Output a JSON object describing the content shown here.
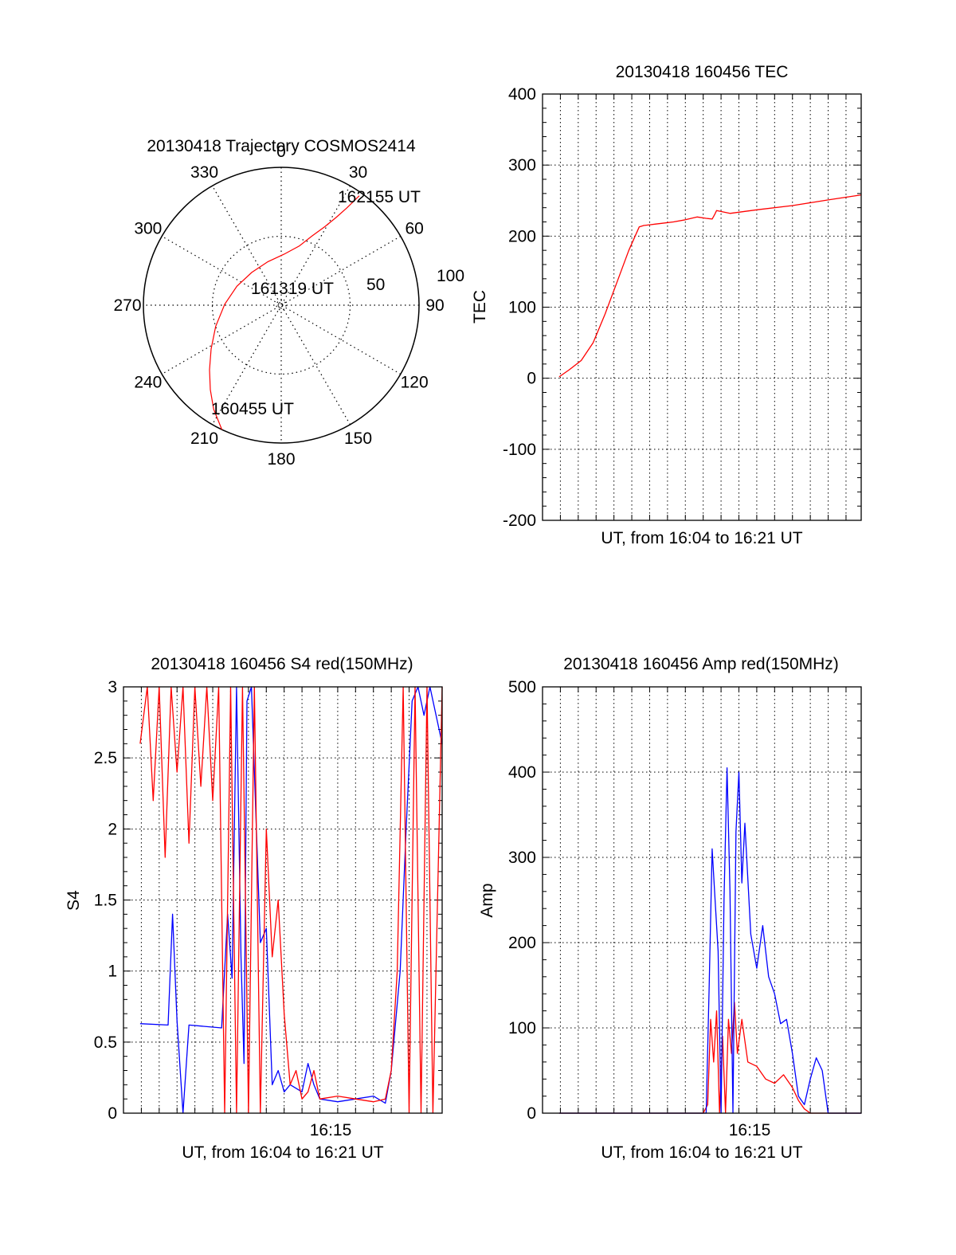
{
  "colors": {
    "red": "#ff0000",
    "blue": "#0000ff",
    "axis": "#000000",
    "grid": "#000000"
  },
  "chart_data": [
    {
      "id": "trajectory",
      "type": "polar",
      "title": "20130418 Trajectory COSMOS2414",
      "angle_labels": [
        "0",
        "30",
        "60",
        "90",
        "120",
        "150",
        "180",
        "210",
        "240",
        "270",
        "300",
        "330"
      ],
      "radial_labels": [
        "50",
        "100"
      ],
      "radius_max": 100,
      "grid": true,
      "series": [
        {
          "color": "red",
          "points": [
            [
              205.5,
              100
            ],
            [
              213,
              90
            ],
            [
              220,
              80
            ],
            [
              228,
              70
            ],
            [
              238,
              60
            ],
            [
              252,
              50
            ],
            [
              271,
              41
            ],
            [
              293,
              35
            ],
            [
              318,
              32
            ],
            [
              343,
              33
            ],
            [
              3,
              37
            ],
            [
              17,
              45
            ],
            [
              24,
              55
            ],
            [
              29,
              65
            ],
            [
              32,
              75
            ],
            [
              34,
              85
            ],
            [
              35.5,
              97.5
            ]
          ]
        }
      ],
      "annotations": [
        {
          "text": "162155 UT",
          "angle": 35.5,
          "r": 97.5
        },
        {
          "text": "161319 UT",
          "angle": 300,
          "r": 20
        },
        {
          "text": "160455 UT",
          "angle": 205.5,
          "r": 100
        }
      ]
    },
    {
      "id": "tec",
      "type": "line",
      "title": "20130418 160456 TEC",
      "xlabel": "UT, from 16:04 to 16:21 UT",
      "ylabel": "TEC",
      "xlim": [
        "16:04:00",
        "16:21:51"
      ],
      "ylim": [
        -200,
        400
      ],
      "yticks": [
        "-200",
        "-100",
        "0",
        "100",
        "200",
        "300",
        "400"
      ],
      "grid": true,
      "series": [
        {
          "color": "red",
          "x": [
            "16:04:56",
            "16:05:30",
            "16:06:10",
            "16:06:50",
            "16:07:30",
            "16:08:10",
            "16:08:50",
            "16:09:25",
            "16:09:40",
            "16:10:00",
            "16:10:20",
            "16:10:40",
            "16:11:20",
            "16:12:00",
            "16:12:40",
            "16:13:10",
            "16:13:30",
            "16:13:38",
            "16:13:45",
            "16:14:30",
            "16:16:00",
            "16:18:00",
            "16:20:00",
            "16:21:51"
          ],
          "y": [
            2,
            12,
            25,
            50,
            90,
            135,
            180,
            213,
            215,
            216,
            217,
            218,
            220,
            223,
            227,
            225,
            224,
            230,
            236,
            232,
            237,
            243,
            251,
            258
          ]
        }
      ]
    },
    {
      "id": "s4",
      "type": "line",
      "title": "20130418 160456 S4 red(150MHz)",
      "xlabel": "UT, from 16:04 to 16:21 UT",
      "ylabel": "S4",
      "xtick_label": "16:15",
      "xlim": [
        "16:04:00",
        "16:21:51"
      ],
      "ylim": [
        0,
        3
      ],
      "yticks": [
        "0",
        "0.5",
        "1",
        "1.5",
        "2",
        "2.5",
        "3"
      ],
      "grid": true,
      "series": [
        {
          "color": "blue",
          "note_source": "picture",
          "x": [
            "16:04:56",
            "16:06:30",
            "16:06:45",
            "16:07:00",
            "16:07:20",
            "16:07:40",
            "16:09:30",
            "16:09:50",
            "16:10:05",
            "16:10:20",
            "16:10:35",
            "16:10:45",
            "16:10:55",
            "16:11:10",
            "16:11:40",
            "16:12:00",
            "16:12:20",
            "16:12:40",
            "16:13:00",
            "16:13:20",
            "16:14:00",
            "16:14:20",
            "16:14:40",
            "16:15:00",
            "16:16:00",
            "16:17:00",
            "16:18:00",
            "16:18:40",
            "16:19:00",
            "16:19:30",
            "16:19:50",
            "16:20:10",
            "16:20:30",
            "16:20:50",
            "16:21:10",
            "16:21:51"
          ],
          "y": [
            0.63,
            0.62,
            1.4,
            0.65,
            0,
            0.62,
            0.6,
            1.4,
            0.95,
            3.0,
            1.1,
            0.35,
            2.9,
            3.0,
            1.2,
            1.3,
            0.2,
            0.3,
            0.15,
            0.2,
            0.15,
            0.35,
            0.2,
            0.1,
            0.08,
            0.1,
            0.12,
            0.07,
            0.3,
            1.0,
            2.0,
            2.9,
            3.0,
            2.8,
            3.0,
            2.6
          ]
        },
        {
          "color": "red",
          "x": [
            "16:04:56",
            "16:05:20",
            "16:05:40",
            "16:06:00",
            "16:06:20",
            "16:06:40",
            "16:07:00",
            "16:07:20",
            "16:07:40",
            "16:08:00",
            "16:08:20",
            "16:08:40",
            "16:09:00",
            "16:09:20",
            "16:09:40",
            "16:10:00",
            "16:10:20",
            "16:10:40",
            "16:11:00",
            "16:11:20",
            "16:11:40",
            "16:12:00",
            "16:12:20",
            "16:12:40",
            "16:13:00",
            "16:13:20",
            "16:13:40",
            "16:14:00",
            "16:14:20",
            "16:14:40",
            "16:15:00",
            "16:16:00",
            "16:17:00",
            "16:18:00",
            "16:18:40",
            "16:19:00",
            "16:19:20",
            "16:19:40",
            "16:20:00",
            "16:20:20",
            "16:20:40",
            "16:21:00",
            "16:21:20",
            "16:21:51"
          ],
          "y": [
            2.6,
            3.0,
            2.2,
            3.0,
            1.8,
            3.0,
            2.4,
            3.0,
            1.9,
            3.0,
            2.3,
            3.0,
            2.2,
            3.0,
            0,
            3.0,
            0,
            3.0,
            0,
            3.0,
            0,
            2.0,
            1.1,
            1.5,
            0.7,
            0.2,
            0.3,
            0.1,
            0.15,
            0.3,
            0.1,
            0.12,
            0.1,
            0.08,
            0.1,
            0.3,
            1.0,
            3.0,
            0,
            3.0,
            0,
            3.0,
            0,
            3.0
          ]
        }
      ]
    },
    {
      "id": "amp",
      "type": "line",
      "title": "20130418 160456 Amp red(150MHz)",
      "xlabel": "UT, from 16:04 to 16:21 UT",
      "ylabel": "Amp",
      "xtick_label": "16:15",
      "xlim": [
        "16:04:00",
        "16:21:51"
      ],
      "ylim": [
        0,
        500
      ],
      "yticks": [
        "0",
        "100",
        "200",
        "300",
        "400",
        "500"
      ],
      "grid": true,
      "series": [
        {
          "color": "red",
          "x": [
            "16:04:56",
            "16:13:00",
            "16:13:15",
            "16:13:25",
            "16:13:35",
            "16:13:45",
            "16:13:55",
            "16:14:05",
            "16:14:15",
            "16:14:25",
            "16:14:35",
            "16:14:45",
            "16:14:55",
            "16:15:10",
            "16:15:30",
            "16:16:00",
            "16:16:30",
            "16:17:00",
            "16:17:30",
            "16:18:00",
            "16:18:20",
            "16:18:40",
            "16:19:00",
            "16:21:51"
          ],
          "y": [
            0,
            0,
            10,
            110,
            60,
            120,
            0,
            90,
            0,
            110,
            70,
            130,
            70,
            110,
            60,
            55,
            40,
            35,
            45,
            30,
            15,
            5,
            0,
            0
          ]
        },
        {
          "color": "blue",
          "x": [
            "16:04:56",
            "16:13:10",
            "16:13:20",
            "16:13:30",
            "16:13:40",
            "16:13:50",
            "16:14:00",
            "16:14:10",
            "16:14:20",
            "16:14:30",
            "16:14:40",
            "16:14:50",
            "16:15:00",
            "16:15:10",
            "16:15:20",
            "16:15:40",
            "16:16:00",
            "16:16:20",
            "16:16:40",
            "16:17:00",
            "16:17:20",
            "16:17:40",
            "16:18:00",
            "16:18:20",
            "16:18:40",
            "16:19:00",
            "16:19:20",
            "16:19:40",
            "16:20:00",
            "16:21:51"
          ],
          "y": [
            0,
            0,
            150,
            310,
            250,
            190,
            0,
            250,
            405,
            260,
            0,
            330,
            400,
            270,
            340,
            210,
            170,
            220,
            160,
            140,
            105,
            110,
            70,
            20,
            10,
            40,
            65,
            50,
            0,
            0
          ]
        }
      ]
    }
  ]
}
